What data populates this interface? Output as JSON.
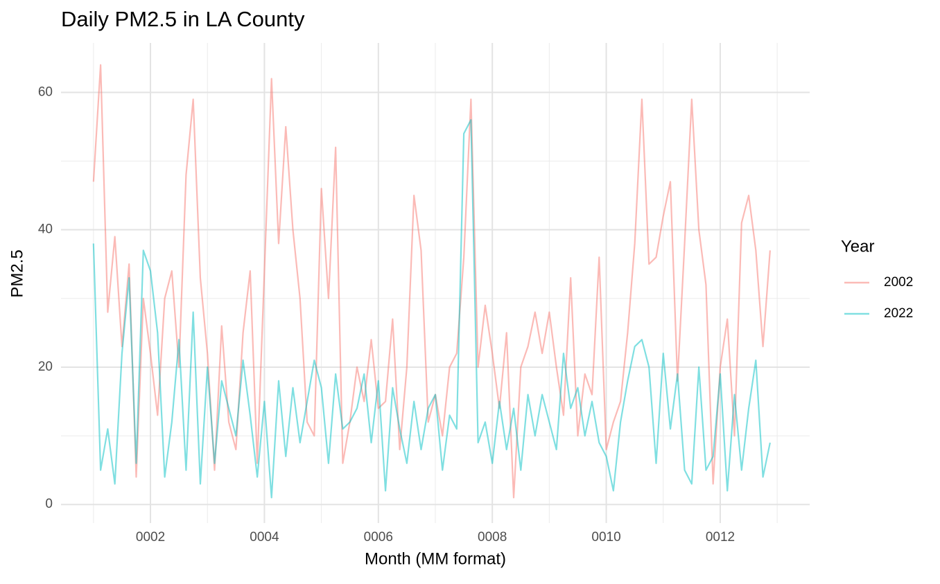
{
  "chart_data": {
    "type": "line",
    "title": "Daily PM2.5 in LA County",
    "x_label": "Month (MM format)",
    "y_label": "PM2.5",
    "legend_title": "Year",
    "legend_position": "right",
    "grid": true,
    "opacity": 0.5,
    "xlim": [
      0.43,
      13.57
    ],
    "ylim": [
      -2.7,
      67.2
    ],
    "xticks": [
      {
        "value": 2,
        "label": "0002"
      },
      {
        "value": 4,
        "label": "0004"
      },
      {
        "value": 6,
        "label": "0006"
      },
      {
        "value": 8,
        "label": "0008"
      },
      {
        "value": 10,
        "label": "0010"
      },
      {
        "value": 12,
        "label": "0012"
      }
    ],
    "xminorticks": [
      1,
      3,
      5,
      7,
      9,
      11,
      13
    ],
    "yticks": [
      0,
      20,
      40,
      60
    ],
    "yminorticks": [
      10,
      30,
      50
    ],
    "x": [
      1,
      1.125,
      1.25,
      1.375,
      1.5,
      1.625,
      1.75,
      1.875,
      2,
      2.125,
      2.25,
      2.375,
      2.5,
      2.625,
      2.75,
      2.875,
      3,
      3.125,
      3.25,
      3.375,
      3.5,
      3.625,
      3.75,
      3.875,
      4,
      4.125,
      4.25,
      4.375,
      4.5,
      4.625,
      4.75,
      4.875,
      5,
      5.125,
      5.25,
      5.375,
      5.5,
      5.625,
      5.75,
      5.875,
      6,
      6.125,
      6.25,
      6.375,
      6.5,
      6.625,
      6.75,
      6.875,
      7,
      7.125,
      7.25,
      7.375,
      7.5,
      7.625,
      7.75,
      7.875,
      8,
      8.125,
      8.25,
      8.375,
      8.5,
      8.625,
      8.75,
      8.875,
      9,
      9.125,
      9.25,
      9.375,
      9.5,
      9.625,
      9.75,
      9.875,
      10,
      10.125,
      10.25,
      10.375,
      10.5,
      10.625,
      10.75,
      10.875,
      11,
      11.125,
      11.25,
      11.375,
      11.5,
      11.625,
      11.75,
      11.875,
      12,
      12.125,
      12.25,
      12.375,
      12.5,
      12.625,
      12.75,
      12.875
    ],
    "series": [
      {
        "name": "2002",
        "color": "#F8766D",
        "values": [
          47,
          64,
          28,
          39,
          23,
          35,
          4,
          30,
          22,
          13,
          30,
          34,
          20,
          48,
          59,
          33,
          22,
          5,
          26,
          12,
          8,
          25,
          34,
          6,
          34,
          62,
          38,
          55,
          40,
          30,
          12,
          10,
          46,
          30,
          52,
          6,
          12,
          20,
          15,
          24,
          14,
          15,
          27,
          8,
          20,
          45,
          37,
          12,
          16,
          10,
          20,
          22,
          36,
          59,
          20,
          29,
          22,
          14,
          25,
          1,
          20,
          23,
          28,
          22,
          28,
          20,
          13,
          33,
          10,
          19,
          16,
          36,
          8,
          12,
          15,
          25,
          38,
          59,
          35,
          36,
          42,
          47,
          18,
          38,
          59,
          40,
          32,
          3,
          20,
          27,
          10,
          41,
          45,
          37,
          23,
          37
        ]
      },
      {
        "name": "2022",
        "color": "#00BFC4",
        "values": [
          38,
          5,
          11,
          3,
          22,
          33,
          6,
          37,
          34,
          25,
          4,
          12,
          24,
          5,
          28,
          3,
          20,
          6,
          18,
          14,
          10,
          21,
          13,
          4,
          15,
          1,
          18,
          7,
          17,
          9,
          15,
          21,
          17,
          6,
          19,
          11,
          12,
          14,
          19,
          9,
          18,
          2,
          17,
          11,
          6,
          15,
          8,
          14,
          16,
          5,
          13,
          11,
          54,
          56,
          9,
          12,
          6,
          15,
          8,
          14,
          5,
          16,
          10,
          16,
          12,
          8,
          22,
          14,
          17,
          10,
          15,
          9,
          7,
          2,
          12,
          18,
          23,
          24,
          20,
          6,
          22,
          11,
          19,
          5,
          3,
          20,
          5,
          7,
          19,
          2,
          16,
          5,
          14,
          21,
          4,
          9
        ]
      }
    ]
  }
}
